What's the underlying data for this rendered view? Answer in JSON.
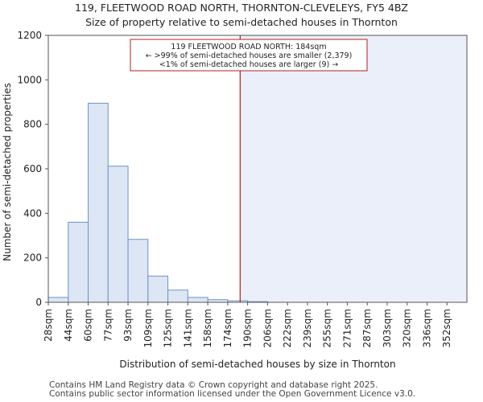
{
  "chart_data": {
    "type": "bar",
    "title": "119, FLEETWOOD ROAD NORTH, THORNTON-CLEVELEYS, FY5 4BZ",
    "subtitle": "Size of property relative to semi-detached houses in Thornton",
    "xlabel": "Distribution of semi-detached houses by size in Thornton",
    "ylabel": "Number of semi-detached properties",
    "categories": [
      "28sqm",
      "44sqm",
      "60sqm",
      "77sqm",
      "93sqm",
      "109sqm",
      "125sqm",
      "141sqm",
      "158sqm",
      "174sqm",
      "190sqm",
      "206sqm",
      "222sqm",
      "239sqm",
      "255sqm",
      "271sqm",
      "287sqm",
      "303sqm",
      "320sqm",
      "336sqm",
      "352sqm"
    ],
    "values": [
      22,
      360,
      895,
      612,
      283,
      118,
      55,
      22,
      12,
      7,
      3,
      0,
      0,
      0,
      0,
      0,
      0,
      0,
      0,
      0,
      0
    ],
    "ylim": [
      0,
      1200
    ],
    "yticks": [
      0,
      200,
      400,
      600,
      800,
      1000,
      1200
    ],
    "marker_value": 184,
    "marker_label": "119 FLEETWOOD ROAD NORTH: 184sqm",
    "annotation_line2": "← >99% of semi-detached houses are smaller (2,379)",
    "annotation_line3": "<1% of semi-detached houses are larger (9) →",
    "colors": {
      "bar_fill": "#dce6f4",
      "bar_edge": "#6f93c8",
      "marker": "#b22222",
      "highlight": "#ebeffa"
    }
  },
  "footer": {
    "line1": "Contains HM Land Registry data © Crown copyright and database right 2025.",
    "line2": "Contains public sector information licensed under the Open Government Licence v3.0."
  }
}
